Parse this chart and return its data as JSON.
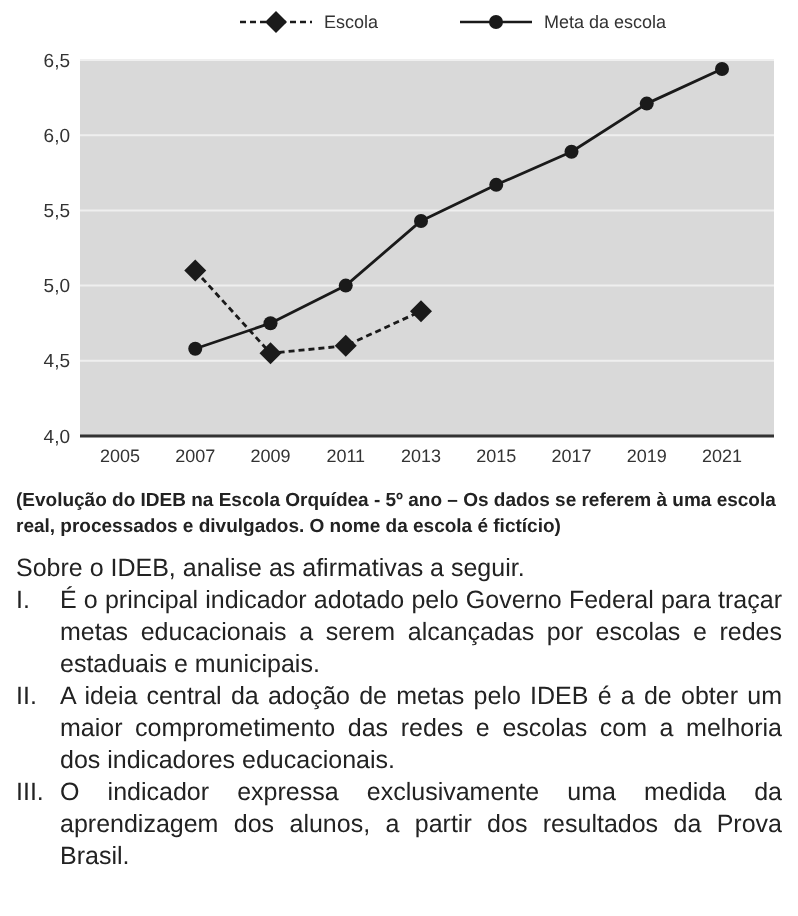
{
  "chart_data": {
    "type": "line",
    "categories": [
      "2005",
      "2007",
      "2009",
      "2011",
      "2013",
      "2015",
      "2017",
      "2019",
      "2021"
    ],
    "series": [
      {
        "name": "Escola",
        "color": "#1a1a1a",
        "marker": "diamond",
        "line_style": "dashed",
        "values": [
          null,
          5.1,
          4.55,
          4.6,
          4.83,
          null,
          null,
          null,
          null
        ]
      },
      {
        "name": "Meta da escola",
        "color": "#1a1a1a",
        "marker": "circle",
        "line_style": "solid",
        "values": [
          null,
          4.58,
          4.75,
          5.0,
          5.43,
          5.67,
          5.89,
          6.21,
          6.44
        ]
      }
    ],
    "ylim": [
      4.0,
      6.5
    ],
    "yticks": [
      {
        "value": 4.0,
        "label": "4,0"
      },
      {
        "value": 4.5,
        "label": "4,5"
      },
      {
        "value": 5.0,
        "label": "5,0"
      },
      {
        "value": 5.5,
        "label": "5,5"
      },
      {
        "value": 6.0,
        "label": "6,0"
      },
      {
        "value": 6.5,
        "label": "6,5"
      }
    ],
    "grid": "y",
    "legend": "top",
    "annotations": [
      "(Evolução do IDEB na Escola Orquídea - 5º ano – Os dados se referem à uma escola real, processados e divulgados. O nome da escola é fictício)",
      "Sobre o IDEB, analise as afirmativas a seguir.",
      "I. É o principal indicador adotado pelo Governo Federal para traçar metas educacionais a serem alcançadas por escolas e redes estaduais e municipais.",
      "II. A ideia central da adoção de metas pelo IDEB é a de obter um maior comprometimento das redes e escolas com a melhoria dos indicadores educacionais.",
      "III. O indicador expressa exclusivamente uma medida da aprendizagem dos alunos, a partir dos resultados da Prova Brasil."
    ]
  }
}
